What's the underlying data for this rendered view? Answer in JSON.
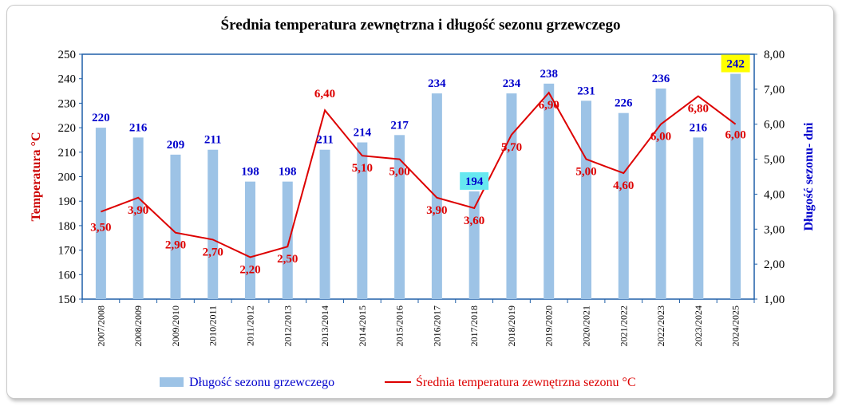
{
  "chart_data": {
    "type": "bar",
    "title": "Średnia temperatura zewnętrzna i długość sezonu grzewczego",
    "categories": [
      "2007/2008",
      "2008/2009",
      "2009/2010",
      "2010/2011",
      "2011/2012",
      "2012/2013",
      "2013/2014",
      "2014/2015",
      "2015/2016",
      "2016/2017",
      "2017/2018",
      "2018/2019",
      "2019/2020",
      "2020/2021",
      "2021/2022",
      "2022/2023",
      "2023/2024",
      "2024/2025"
    ],
    "series": [
      {
        "name": "Długość sezonu grzewczego",
        "type": "bar",
        "axis": "left",
        "values": [
          220,
          216,
          209,
          211,
          198,
          198,
          211,
          214,
          217,
          234,
          194,
          234,
          238,
          231,
          226,
          236,
          216,
          242
        ],
        "labels": [
          "220",
          "216",
          "209",
          "211",
          "198",
          "198",
          "211",
          "214",
          "217",
          "234",
          "194",
          "234",
          "238",
          "231",
          "226",
          "236",
          "216",
          "242"
        ],
        "color": "#9dc3e6",
        "label_color": "#0000cc",
        "highlights": [
          {
            "index": 10,
            "color": "#66e8f0"
          },
          {
            "index": 17,
            "color": "#ffff00"
          }
        ]
      },
      {
        "name": "Średnia temperatura zewnętrzna sezonu °C",
        "type": "line",
        "axis": "right",
        "values": [
          3.5,
          3.9,
          2.9,
          2.7,
          2.2,
          2.5,
          6.4,
          5.1,
          5.0,
          3.9,
          3.6,
          5.7,
          6.9,
          5.0,
          4.6,
          6.0,
          6.8,
          6.0
        ],
        "labels": [
          "3,50",
          "3,90",
          "2,90",
          "2,70",
          "2,20",
          "2,50",
          "6,40",
          "5,10",
          "5,00",
          "3,90",
          "3,60",
          "5,70",
          "6,90",
          "5,00",
          "4,60",
          "6,00",
          "6,80",
          "6,00"
        ],
        "color": "#dd0000"
      }
    ],
    "left_axis": {
      "title": "Temperatura °C",
      "min": 150,
      "max": 250,
      "step": 10,
      "ticks": [
        "150",
        "160",
        "170",
        "180",
        "190",
        "200",
        "210",
        "220",
        "230",
        "240",
        "250"
      ],
      "color": "#cc0000"
    },
    "right_axis": {
      "title": "Długość sezonu- dni",
      "min": 1,
      "max": 8,
      "step": 1,
      "ticks": [
        "1,00",
        "2,00",
        "3,00",
        "4,00",
        "5,00",
        "6,00",
        "7,00",
        "8,00"
      ],
      "color": "#0000cc"
    },
    "plot_border_color": "#1f5fa8",
    "grid": false,
    "legend_position": "bottom"
  }
}
